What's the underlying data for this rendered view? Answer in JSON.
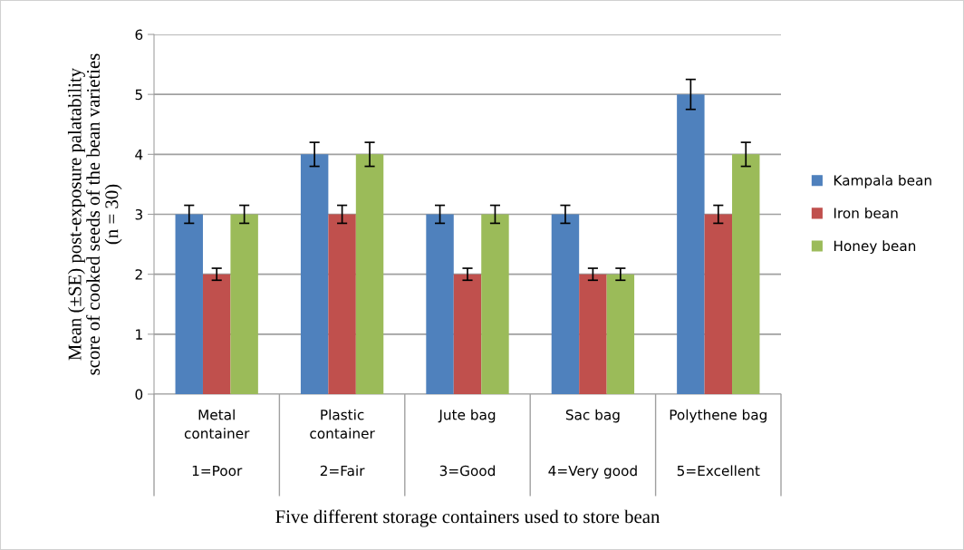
{
  "chart_data": {
    "type": "bar",
    "categories": [
      "Metal\ncontainer\n1=Poor",
      "Plastic\ncontainer\n2=Fair",
      "Jute bag\n3=Good",
      "Sac bag\n4=Very good",
      "Polythene bag\n5=Excellent"
    ],
    "series": [
      {
        "name": "Kampala bean",
        "color": "#4f81bd",
        "values": [
          3,
          4,
          3,
          3,
          5
        ],
        "errors": [
          0.15,
          0.2,
          0.15,
          0.15,
          0.25
        ]
      },
      {
        "name": "Iron bean",
        "color": "#c0504d",
        "values": [
          2,
          3,
          2,
          2,
          3
        ],
        "errors": [
          0.1,
          0.15,
          0.1,
          0.1,
          0.15
        ]
      },
      {
        "name": "Honey bean",
        "color": "#9bbb59",
        "values": [
          3,
          4,
          3,
          2,
          4
        ],
        "errors": [
          0.15,
          0.2,
          0.15,
          0.1,
          0.2
        ]
      }
    ],
    "annotations": [
      "Five different storage containers used to store bean"
    ],
    "ylabel": "Mean (±SE) post-exposure palatability\nscore of cooked seeds of the bean varieties\n(n = 30)",
    "ylim": [
      0,
      6
    ],
    "yticks": [
      0,
      1,
      2,
      3,
      4,
      5,
      6
    ],
    "grid": "y",
    "legend": "right"
  }
}
